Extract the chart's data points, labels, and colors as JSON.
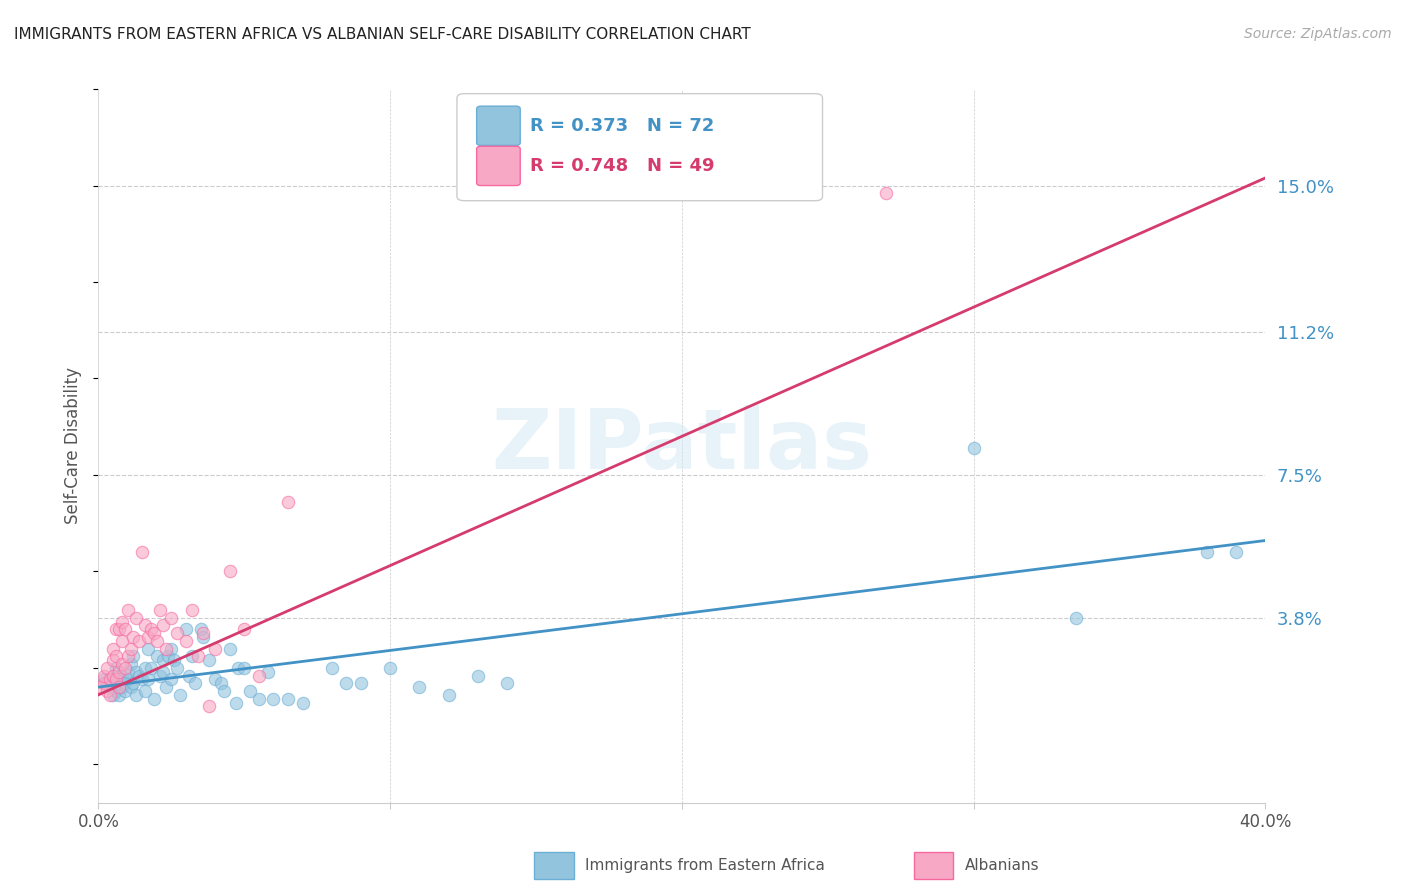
{
  "title": "IMMIGRANTS FROM EASTERN AFRICA VS ALBANIAN SELF-CARE DISABILITY CORRELATION CHART",
  "source": "Source: ZipAtlas.com",
  "ylabel": "Self-Care Disability",
  "ytick_labels": [
    "15.0%",
    "11.2%",
    "7.5%",
    "3.8%"
  ],
  "ytick_values": [
    0.15,
    0.112,
    0.075,
    0.038
  ],
  "xlim": [
    0.0,
    0.4
  ],
  "ylim": [
    -0.01,
    0.175
  ],
  "legend1_r": "0.373",
  "legend1_n": "72",
  "legend2_r": "0.748",
  "legend2_n": "49",
  "blue_color": "#93c4de",
  "blue_edge": "#6baed6",
  "blue_line_color": "#4292c6",
  "pink_color": "#f7a8c4",
  "pink_edge": "#f768a1",
  "pink_line_color": "#d63b6e",
  "watermark": "ZIPatlas",
  "background_color": "#ffffff",
  "blue_scatter": [
    [
      0.002,
      0.022
    ],
    [
      0.003,
      0.021
    ],
    [
      0.004,
      0.02
    ],
    [
      0.005,
      0.022
    ],
    [
      0.005,
      0.018
    ],
    [
      0.006,
      0.025
    ],
    [
      0.006,
      0.019
    ],
    [
      0.007,
      0.023
    ],
    [
      0.007,
      0.018
    ],
    [
      0.008,
      0.02
    ],
    [
      0.008,
      0.023
    ],
    [
      0.009,
      0.021
    ],
    [
      0.009,
      0.019
    ],
    [
      0.01,
      0.022
    ],
    [
      0.01,
      0.024
    ],
    [
      0.011,
      0.02
    ],
    [
      0.011,
      0.026
    ],
    [
      0.012,
      0.028
    ],
    [
      0.012,
      0.021
    ],
    [
      0.013,
      0.024
    ],
    [
      0.013,
      0.018
    ],
    [
      0.014,
      0.023
    ],
    [
      0.015,
      0.022
    ],
    [
      0.016,
      0.025
    ],
    [
      0.016,
      0.019
    ],
    [
      0.017,
      0.03
    ],
    [
      0.017,
      0.022
    ],
    [
      0.018,
      0.025
    ],
    [
      0.019,
      0.017
    ],
    [
      0.02,
      0.028
    ],
    [
      0.021,
      0.023
    ],
    [
      0.022,
      0.027
    ],
    [
      0.022,
      0.024
    ],
    [
      0.023,
      0.02
    ],
    [
      0.024,
      0.028
    ],
    [
      0.025,
      0.03
    ],
    [
      0.025,
      0.022
    ],
    [
      0.026,
      0.027
    ],
    [
      0.027,
      0.025
    ],
    [
      0.028,
      0.018
    ],
    [
      0.03,
      0.035
    ],
    [
      0.031,
      0.023
    ],
    [
      0.032,
      0.028
    ],
    [
      0.033,
      0.021
    ],
    [
      0.035,
      0.035
    ],
    [
      0.036,
      0.033
    ],
    [
      0.038,
      0.027
    ],
    [
      0.04,
      0.022
    ],
    [
      0.042,
      0.021
    ],
    [
      0.043,
      0.019
    ],
    [
      0.045,
      0.03
    ],
    [
      0.047,
      0.016
    ],
    [
      0.048,
      0.025
    ],
    [
      0.05,
      0.025
    ],
    [
      0.052,
      0.019
    ],
    [
      0.055,
      0.017
    ],
    [
      0.058,
      0.024
    ],
    [
      0.06,
      0.017
    ],
    [
      0.065,
      0.017
    ],
    [
      0.07,
      0.016
    ],
    [
      0.08,
      0.025
    ],
    [
      0.085,
      0.021
    ],
    [
      0.09,
      0.021
    ],
    [
      0.1,
      0.025
    ],
    [
      0.11,
      0.02
    ],
    [
      0.12,
      0.018
    ],
    [
      0.13,
      0.023
    ],
    [
      0.14,
      0.021
    ],
    [
      0.3,
      0.082
    ],
    [
      0.335,
      0.038
    ],
    [
      0.38,
      0.055
    ],
    [
      0.39,
      0.055
    ]
  ],
  "pink_scatter": [
    [
      0.001,
      0.02
    ],
    [
      0.002,
      0.021
    ],
    [
      0.002,
      0.023
    ],
    [
      0.003,
      0.019
    ],
    [
      0.003,
      0.025
    ],
    [
      0.004,
      0.022
    ],
    [
      0.004,
      0.018
    ],
    [
      0.005,
      0.023
    ],
    [
      0.005,
      0.03
    ],
    [
      0.005,
      0.027
    ],
    [
      0.006,
      0.022
    ],
    [
      0.006,
      0.028
    ],
    [
      0.006,
      0.035
    ],
    [
      0.007,
      0.024
    ],
    [
      0.007,
      0.035
    ],
    [
      0.007,
      0.02
    ],
    [
      0.008,
      0.032
    ],
    [
      0.008,
      0.026
    ],
    [
      0.008,
      0.037
    ],
    [
      0.009,
      0.025
    ],
    [
      0.009,
      0.035
    ],
    [
      0.01,
      0.028
    ],
    [
      0.01,
      0.04
    ],
    [
      0.011,
      0.03
    ],
    [
      0.012,
      0.033
    ],
    [
      0.013,
      0.038
    ],
    [
      0.014,
      0.032
    ],
    [
      0.015,
      0.055
    ],
    [
      0.016,
      0.036
    ],
    [
      0.017,
      0.033
    ],
    [
      0.018,
      0.035
    ],
    [
      0.019,
      0.034
    ],
    [
      0.02,
      0.032
    ],
    [
      0.021,
      0.04
    ],
    [
      0.022,
      0.036
    ],
    [
      0.023,
      0.03
    ],
    [
      0.025,
      0.038
    ],
    [
      0.027,
      0.034
    ],
    [
      0.03,
      0.032
    ],
    [
      0.032,
      0.04
    ],
    [
      0.034,
      0.028
    ],
    [
      0.036,
      0.034
    ],
    [
      0.038,
      0.015
    ],
    [
      0.04,
      0.03
    ],
    [
      0.045,
      0.05
    ],
    [
      0.05,
      0.035
    ],
    [
      0.055,
      0.023
    ],
    [
      0.065,
      0.068
    ],
    [
      0.27,
      0.148
    ]
  ],
  "blue_line_x": [
    0.0,
    0.4
  ],
  "blue_line_y": [
    0.02,
    0.058
  ],
  "pink_line_x": [
    0.0,
    0.4
  ],
  "pink_line_y": [
    0.018,
    0.152
  ]
}
